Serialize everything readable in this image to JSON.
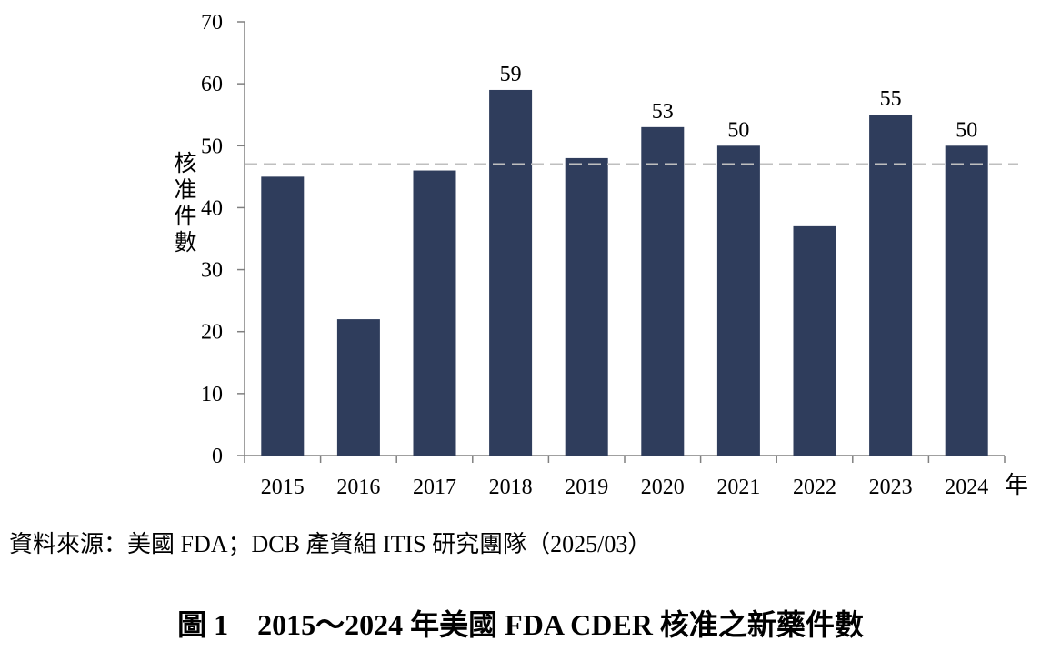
{
  "chart_data": {
    "type": "bar",
    "categories": [
      "2015",
      "2016",
      "2017",
      "2018",
      "2019",
      "2020",
      "2021",
      "2022",
      "2023",
      "2024"
    ],
    "values": [
      45,
      22,
      46,
      59,
      48,
      53,
      50,
      37,
      55,
      50
    ],
    "data_labels": {
      "2018": "59",
      "2020": "53",
      "2021": "50",
      "2023": "55",
      "2024": "50"
    },
    "reference_line": 47,
    "xlabel": "年",
    "ylabel": "核准件數",
    "ylim": [
      0,
      70
    ],
    "yticks": [
      0,
      10,
      20,
      30,
      40,
      50,
      60,
      70
    ],
    "grid": false,
    "colors": {
      "bar": "#2f3d5c",
      "reference_line": "#bfbfbf",
      "axis": "#808080"
    }
  },
  "source": "資料來源：美國 FDA；DCB 產資組 ITIS 研究團隊（2025/03）",
  "caption": "圖 1　2015～2024 年美國 FDA CDER 核准之新藥件數"
}
